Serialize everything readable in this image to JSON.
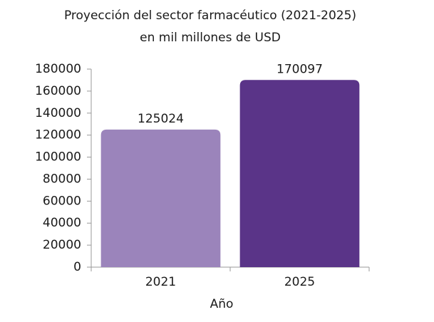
{
  "chart_data": {
    "type": "bar",
    "title": "Proyección del sector farmacéutico (2021-2025)",
    "subtitle": "en mil millones de USD",
    "x_label": "Año",
    "categories": [
      "2021",
      "2025"
    ],
    "values": [
      125024,
      170097
    ],
    "colors": [
      "#9b84bb",
      "#5a3488"
    ],
    "ylim": [
      0,
      180000
    ],
    "yticks": [
      0,
      20000,
      40000,
      60000,
      80000,
      100000,
      120000,
      140000,
      160000,
      180000
    ],
    "grid": false
  }
}
